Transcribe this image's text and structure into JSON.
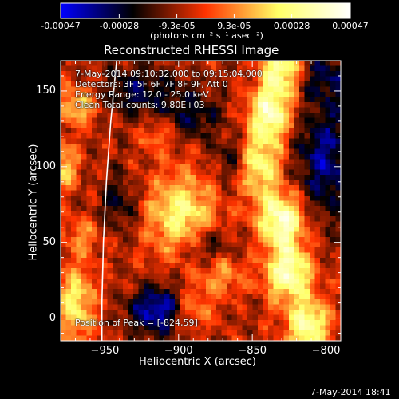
{
  "colorbar": {
    "tick_labels": [
      "-0.00047",
      "-0.00028",
      "-9.3e-05",
      "9.3e-05",
      "0.00028",
      "0.00047"
    ],
    "tick_values": [
      -0.00047,
      -0.00028,
      -9.3e-05,
      9.3e-05,
      0.00028,
      0.00047
    ],
    "unit_label": "(photons cm⁻² s⁻¹ asec⁻²)",
    "range": [
      -0.00047,
      0.00047
    ],
    "colors": [
      "#0000ff",
      "#000000",
      "#ff3300",
      "#ffff66",
      "#ffffff"
    ]
  },
  "chart_data": {
    "type": "heatmap",
    "title": "Reconstructed RHESSI Image",
    "xlabel": "Heliocentric X (arcsec)",
    "ylabel": "Heliocentric Y (arcsec)",
    "xlim": [
      -980,
      -790
    ],
    "ylim": [
      -15,
      170
    ],
    "x_ticks": [
      -950,
      -900,
      -850,
      -800
    ],
    "x_tick_labels": [
      "−950",
      "−900",
      "−850",
      "−800"
    ],
    "y_ticks": [
      0,
      50,
      100,
      150
    ],
    "y_tick_labels": [
      "0",
      "50",
      "100",
      "150"
    ],
    "limb_curve": [
      [
        -942,
        170
      ],
      [
        -946,
        130
      ],
      [
        -949,
        90
      ],
      [
        -951,
        50
      ],
      [
        -952,
        10
      ],
      [
        -952,
        -15
      ]
    ],
    "peak_position": [
      -824,
      59
    ],
    "annotations": {
      "time_range": "7-May-2014 09:10:32.000 to 09:15:04.000",
      "detectors": "Detectors: 3F 5F 6F 7F 8F 9F, Att 0",
      "energy_range": "Energy Range: 12.0 - 25.0 keV",
      "clean_counts": "Clean     Total counts: 9.80E+03",
      "peak_text": "Position of Peak = [-824,59]"
    },
    "sources": [
      {
        "x": -830,
        "y": 170,
        "sx": 9,
        "sy": 15,
        "a": 0.0004
      },
      {
        "x": -838,
        "y": 135,
        "sx": 10,
        "sy": 14,
        "a": 0.00044
      },
      {
        "x": -845,
        "y": 100,
        "sx": 10,
        "sy": 14,
        "a": 0.00033
      },
      {
        "x": -830,
        "y": 65,
        "sx": 11,
        "sy": 13,
        "a": 0.00047
      },
      {
        "x": -825,
        "y": 30,
        "sx": 11,
        "sy": 13,
        "a": 0.00045
      },
      {
        "x": -812,
        "y": -5,
        "sx": 10,
        "sy": 12,
        "a": 0.00042
      },
      {
        "x": -898,
        "y": 68,
        "sx": 17,
        "sy": 19,
        "a": 0.00034
      },
      {
        "x": -872,
        "y": 32,
        "sx": 11,
        "sy": 11,
        "a": 0.00025
      },
      {
        "x": -890,
        "y": 5,
        "sx": 9,
        "sy": 9,
        "a": 0.0002
      },
      {
        "x": -970,
        "y": 10,
        "sx": 9,
        "sy": 18,
        "a": 0.00032
      },
      {
        "x": -978,
        "y": 100,
        "sx": 7,
        "sy": 11,
        "a": 0.00026
      },
      {
        "x": -968,
        "y": 140,
        "sx": 10,
        "sy": 9,
        "a": 0.00026
      },
      {
        "x": -965,
        "y": 55,
        "sx": 8,
        "sy": 8,
        "a": 0.00017
      },
      {
        "x": -915,
        "y": 120,
        "sx": 8,
        "sy": 7,
        "a": 0.00015
      },
      {
        "x": -915,
        "y": 5,
        "sx": 13,
        "sy": 11,
        "a": -0.00036
      },
      {
        "x": -878,
        "y": 45,
        "sx": 12,
        "sy": 10,
        "a": -0.00027
      },
      {
        "x": -800,
        "y": 105,
        "sx": 15,
        "sy": 28,
        "a": -0.00028
      },
      {
        "x": -928,
        "y": 150,
        "sx": 17,
        "sy": 12,
        "a": -0.00022
      },
      {
        "x": -890,
        "y": 135,
        "sx": 13,
        "sy": 12,
        "a": -0.00019
      },
      {
        "x": -940,
        "y": 75,
        "sx": 10,
        "sy": 14,
        "a": -0.00017
      },
      {
        "x": -865,
        "y": 105,
        "sx": 8,
        "sy": 12,
        "a": -0.00015
      },
      {
        "x": -800,
        "y": 160,
        "sx": 12,
        "sy": 12,
        "a": -0.00017
      }
    ]
  },
  "footer": {
    "timestamp": "7-May-2014 18:41"
  }
}
